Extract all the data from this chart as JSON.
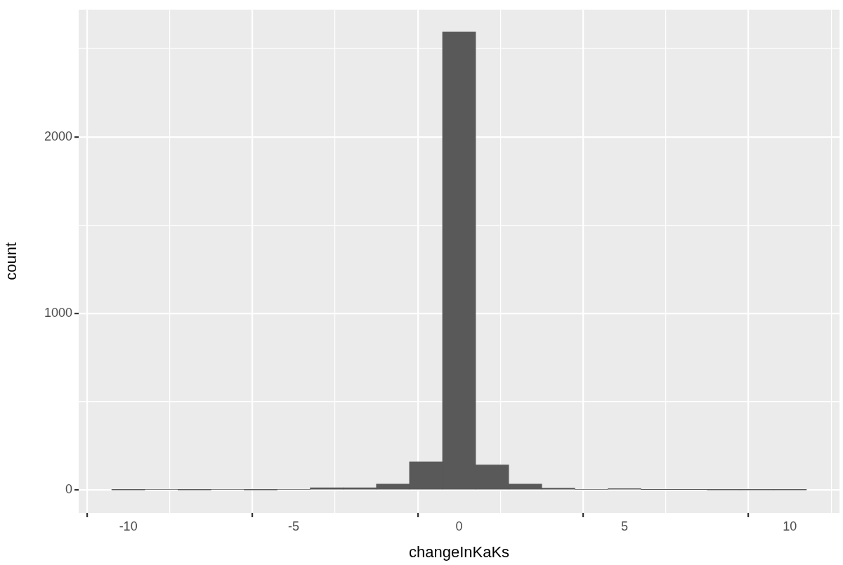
{
  "chart_data": {
    "type": "histogram",
    "xlabel": "changeInKaKs",
    "ylabel": "count",
    "bins": [
      -10.5,
      -9.5,
      -8.5,
      -7.5,
      -6.5,
      -5.5,
      -4.5,
      -3.5,
      -2.5,
      -1.5,
      -0.5,
      0.5,
      1.5,
      2.5,
      3.5,
      4.5,
      5.5,
      6.5,
      7.5,
      8.5,
      9.5,
      10.5
    ],
    "values": [
      1,
      4,
      1,
      4,
      1,
      4,
      13,
      13,
      34,
      160,
      2595,
      142,
      34,
      11,
      4,
      8,
      3,
      3,
      1,
      1,
      1
    ],
    "color": "#595959",
    "xlim": [
      -11.5,
      11.5
    ],
    "xticks": [
      -10,
      -5,
      0,
      5,
      10
    ],
    "ylim": [
      -130,
      2720
    ],
    "yticks": [
      0,
      {
        "value": 500,
        "label": null
      },
      1000,
      {
        "value": 1500,
        "label": null
      },
      2000,
      {
        "value": 2500,
        "label": null
      }
    ],
    "grid": true
  }
}
